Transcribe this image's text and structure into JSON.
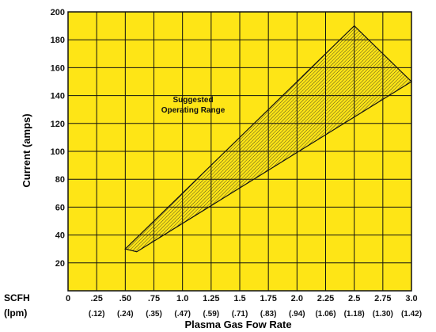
{
  "chart_data": {
    "type": "area",
    "background_color": "#fee516",
    "grid": true,
    "xlim": [
      0,
      3.0
    ],
    "ylim": [
      0,
      200
    ],
    "x_ticks": [
      "0",
      ".25",
      ".50",
      ".75",
      "1.0",
      "1.25",
      "1.5",
      "1.75",
      "2.0",
      "2.25",
      "2.5",
      "2.75",
      "3.0"
    ],
    "x_ticks_lpm": [
      "(.12)",
      "(.24)",
      "(.35)",
      "(.47)",
      "(.59)",
      "(.71)",
      "(.83)",
      "(.94)",
      "(1.06)",
      "(1.18)",
      "(1.30)",
      "(1.42)"
    ],
    "y_ticks": [
      "20",
      "40",
      "60",
      "80",
      "100",
      "120",
      "140",
      "160",
      "180",
      "200"
    ],
    "x_unit_label": "SCFH",
    "x_unit_label_2": "(lpm)",
    "xlabel": "Plasma Gas Fow Rate",
    "ylabel": "Current (amps)",
    "annotation": [
      "Suggested",
      "Operating Range"
    ],
    "region": {
      "name": "Suggested Operating Range",
      "upper_boundary": [
        {
          "x": 0.5,
          "y": 30
        },
        {
          "x": 2.5,
          "y": 190
        }
      ],
      "right_boundary": [
        {
          "x": 2.5,
          "y": 190
        },
        {
          "x": 3.0,
          "y": 150
        }
      ],
      "lower_boundary": [
        {
          "x": 0.6,
          "y": 28
        },
        {
          "x": 3.0,
          "y": 150
        }
      ],
      "bottom_edge": [
        {
          "x": 0.5,
          "y": 30
        },
        {
          "x": 0.6,
          "y": 28
        }
      ]
    }
  }
}
